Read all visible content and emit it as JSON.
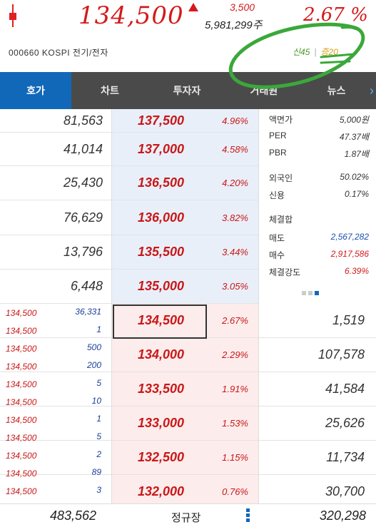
{
  "header": {
    "price": "134,500",
    "change": "3,500",
    "volume": "5,981,299주",
    "change_pct": "2.67 %",
    "code": "000660  KOSPI  전기/전자",
    "badge_new": "신45",
    "badge_inc": "증20"
  },
  "tabs": [
    {
      "label": "호가"
    },
    {
      "label": "차트"
    },
    {
      "label": "투자자"
    },
    {
      "label": "거래원"
    },
    {
      "label": "뉴스"
    }
  ],
  "asks": [
    {
      "qty": "81,563",
      "price": "137,500",
      "pct": "4.96%"
    },
    {
      "qty": "41,014",
      "price": "137,000",
      "pct": "4.58%"
    },
    {
      "qty": "25,430",
      "price": "136,500",
      "pct": "4.20%"
    },
    {
      "qty": "76,629",
      "price": "136,000",
      "pct": "3.82%"
    },
    {
      "qty": "13,796",
      "price": "135,500",
      "pct": "3.44%"
    },
    {
      "qty": "6,448",
      "price": "135,000",
      "pct": "3.05%"
    }
  ],
  "bids": [
    {
      "price": "134,500",
      "pct": "2.67%",
      "qty": "1,519"
    },
    {
      "price": "134,000",
      "pct": "2.29%",
      "qty": "107,578"
    },
    {
      "price": "133,500",
      "pct": "1.91%",
      "qty": "41,584"
    },
    {
      "price": "133,000",
      "pct": "1.53%",
      "qty": "25,626"
    },
    {
      "price": "132,500",
      "pct": "1.15%",
      "qty": "11,734"
    },
    {
      "price": "132,000",
      "pct": "0.76%",
      "qty": "30,700"
    }
  ],
  "info": [
    {
      "label": "액면가",
      "value": "5,000원",
      "color": ""
    },
    {
      "label": "PER",
      "value": "47.37배",
      "color": ""
    },
    {
      "label": "PBR",
      "value": "1.87배",
      "color": ""
    },
    {
      "label": "외국인",
      "value": "50.02%",
      "color": ""
    },
    {
      "label": "신용",
      "value": "0.17%",
      "color": ""
    },
    {
      "label": "체결합",
      "value": "",
      "color": ""
    },
    {
      "label": "매도",
      "value": "2,567,282",
      "color": "blue"
    },
    {
      "label": "매수",
      "value": "2,917,586",
      "color": "red"
    },
    {
      "label": "체결강도",
      "value": "6.39%",
      "color": "red"
    }
  ],
  "ticks": [
    {
      "price": "134,500",
      "qty": "36,331"
    },
    {
      "price": "134,500",
      "qty": "1"
    },
    {
      "price": "134,500",
      "qty": "500"
    },
    {
      "price": "134,500",
      "qty": "200"
    },
    {
      "price": "134,500",
      "qty": "5"
    },
    {
      "price": "134,500",
      "qty": "10"
    },
    {
      "price": "134,500",
      "qty": "1"
    },
    {
      "price": "134,500",
      "qty": "5"
    },
    {
      "price": "134,500",
      "qty": "2"
    },
    {
      "price": "134,500",
      "qty": "89"
    },
    {
      "price": "134,500",
      "qty": "3"
    }
  ],
  "footer": {
    "ask_total": "483,562",
    "session": "정규장",
    "bid_total": "320,298"
  },
  "colors": {
    "up": "#d41a1a",
    "tab_active": "#1268b8",
    "tab_bar": "#4a4a4a",
    "ask_bg": "#e9eff9",
    "bid_bg": "#fdecec",
    "annotation": "#3aa83a"
  }
}
